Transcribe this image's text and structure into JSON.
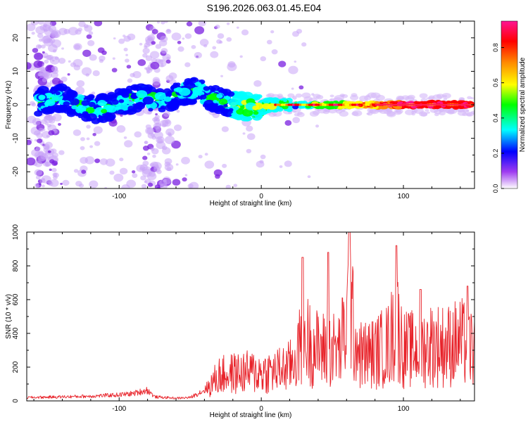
{
  "title": "S196.2026.063.01.45.E04",
  "colors": {
    "axis": "#000000",
    "snr_line": "#e8232a",
    "colormap_stops": [
      "#ffffff",
      "#8a2be2",
      "#0000ff",
      "#00ffff",
      "#00ff00",
      "#ffff00",
      "#ff8c00",
      "#ff0000",
      "#ff1493"
    ]
  },
  "chart_data": [
    {
      "type": "heatmap",
      "xlabel": "Height of straight line (km)",
      "ylabel": "Frequency (Hz)",
      "xlim": [
        -165,
        150
      ],
      "ylim": [
        -25,
        25
      ],
      "x_ticks": [
        -100,
        0,
        100
      ],
      "y_ticks": [
        -20,
        -10,
        0,
        10,
        20
      ],
      "grid": false,
      "colorbar": {
        "label": "Normalized spectral amplitude",
        "range": [
          0.0,
          0.95
        ],
        "ticks": [
          "0.0",
          "0.2",
          "0.4",
          "0.6",
          "0.8"
        ]
      },
      "ridge": {
        "description_points": [
          {
            "x": -160,
            "y": 0.5
          },
          {
            "x": -140,
            "y": 2.0
          },
          {
            "x": -130,
            "y": 0.0
          },
          {
            "x": -115,
            "y": -1.5
          },
          {
            "x": -100,
            "y": 0.5
          },
          {
            "x": -85,
            "y": 2.5
          },
          {
            "x": -70,
            "y": 1.0
          },
          {
            "x": -55,
            "y": 3.5
          },
          {
            "x": -45,
            "y": 5.0
          },
          {
            "x": -35,
            "y": 2.0
          },
          {
            "x": -20,
            "y": 0.0
          },
          {
            "x": -5,
            "y": -1.0
          },
          {
            "x": 10,
            "y": 0.0
          },
          {
            "x": 40,
            "y": 0.0
          },
          {
            "x": 100,
            "y": 0.0
          },
          {
            "x": 148,
            "y": 0.0
          }
        ]
      }
    },
    {
      "type": "line",
      "xlabel": "Height of straight line (km)",
      "ylabel": "SNR (10 * v/v)",
      "xlim": [
        -165,
        150
      ],
      "ylim": [
        0,
        1000
      ],
      "x_ticks": [
        -100,
        0,
        100
      ],
      "y_ticks": [
        0,
        200,
        400,
        600,
        800,
        1000
      ],
      "grid": false,
      "series": [
        {
          "envelope": [
            {
              "x": -165,
              "y": 25
            },
            {
              "x": -140,
              "y": 30
            },
            {
              "x": -120,
              "y": 35
            },
            {
              "x": -100,
              "y": 45
            },
            {
              "x": -90,
              "y": 55
            },
            {
              "x": -80,
              "y": 80
            },
            {
              "x": -75,
              "y": 30
            },
            {
              "x": -60,
              "y": 20
            },
            {
              "x": -50,
              "y": 25
            },
            {
              "x": -40,
              "y": 80
            },
            {
              "x": -35,
              "y": 150
            },
            {
              "x": -30,
              "y": 220
            },
            {
              "x": -20,
              "y": 240
            },
            {
              "x": -10,
              "y": 250
            },
            {
              "x": 0,
              "y": 250
            },
            {
              "x": 10,
              "y": 260
            },
            {
              "x": 20,
              "y": 300
            },
            {
              "x": 25,
              "y": 400
            },
            {
              "x": 30,
              "y": 560
            },
            {
              "x": 35,
              "y": 500
            },
            {
              "x": 40,
              "y": 450
            },
            {
              "x": 50,
              "y": 450
            },
            {
              "x": 55,
              "y": 450
            },
            {
              "x": 60,
              "y": 650
            },
            {
              "x": 62,
              "y": 980
            },
            {
              "x": 65,
              "y": 600
            },
            {
              "x": 70,
              "y": 400
            },
            {
              "x": 80,
              "y": 420
            },
            {
              "x": 90,
              "y": 500
            },
            {
              "x": 95,
              "y": 700
            },
            {
              "x": 100,
              "y": 450
            },
            {
              "x": 110,
              "y": 450
            },
            {
              "x": 120,
              "y": 500
            },
            {
              "x": 130,
              "y": 480
            },
            {
              "x": 140,
              "y": 520
            },
            {
              "x": 150,
              "y": 450
            }
          ],
          "peaks": [
            {
              "x": 62,
              "y": 1000
            },
            {
              "x": 95,
              "y": 920
            },
            {
              "x": 47,
              "y": 880
            },
            {
              "x": 29,
              "y": 850
            },
            {
              "x": 145,
              "y": 680
            },
            {
              "x": 112,
              "y": 660
            }
          ]
        }
      ]
    }
  ]
}
